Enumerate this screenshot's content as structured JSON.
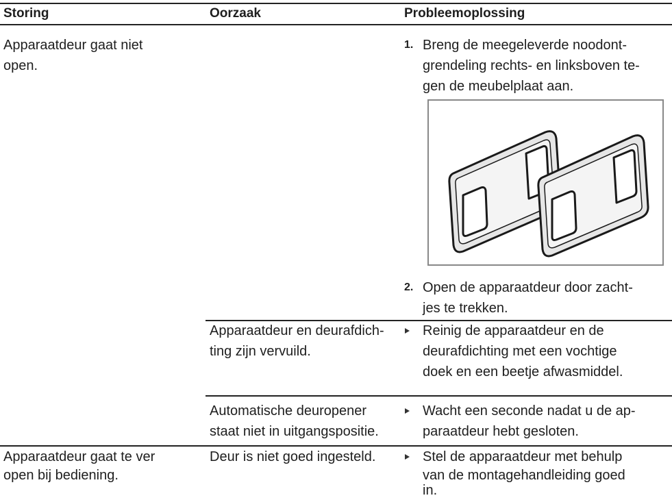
{
  "header": {
    "columns": [
      "Storing",
      "Oorzaak",
      "Probleemoplossing"
    ]
  },
  "rows": [
    {
      "fault": [
        "Apparaatdeur gaat niet",
        "open."
      ],
      "causes": [
        {
          "steps": [
            {
              "number": "1.",
              "lines": [
                "Breng de meegeleverde noodont-",
                "grendeling rechts- en linksboven te-",
                "gen de meubelplaat aan."
              ]
            },
            {
              "number": "2.",
              "lines": [
                "Open de apparaatdeur door zacht-",
                "jes te trekken."
              ]
            }
          ]
        },
        {
          "cause": [
            "Apparaatdeur en deurafdich-",
            "ting zijn vervuild."
          ],
          "remedy": [
            "Reinig de apparaatdeur en de",
            "deurafdichting met een vochtige",
            "doek en een beetje afwasmiddel."
          ]
        },
        {
          "cause": [
            "Automatische deuropener",
            "staat niet in uitgangspositie."
          ],
          "remedy": [
            "Wacht een seconde nadat u de ap-",
            "paraatdeur hebt gesloten."
          ]
        }
      ]
    },
    {
      "fault": [
        "Apparaatdeur gaat te ver",
        "open bij bediening."
      ],
      "causes": [
        {
          "cause": [
            "Deur is niet goed ingesteld."
          ],
          "remedy": [
            "Stel de apparaatdeur met behulp",
            "van de montagehandleiding goed",
            "in."
          ]
        }
      ]
    }
  ]
}
